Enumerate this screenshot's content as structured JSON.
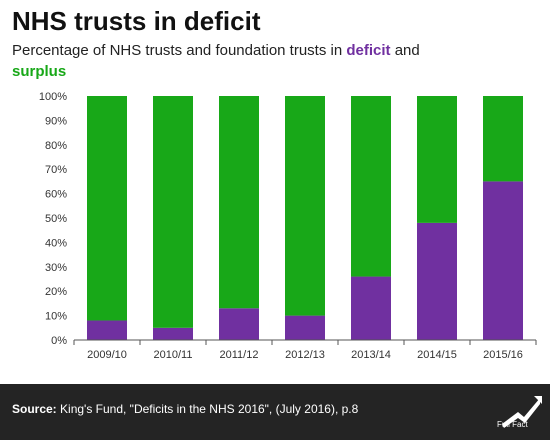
{
  "header": {
    "title": "NHS trusts in deficit",
    "subtitle_prefix": "Percentage of NHS trusts and foundation trusts in ",
    "subtitle_deficit": "deficit",
    "subtitle_and": " and",
    "subtitle_surplus": "surplus"
  },
  "colors": {
    "deficit": "#7030a0",
    "surplus": "#18a818"
  },
  "chart_data": {
    "type": "bar",
    "stacked": true,
    "categories": [
      "2009/10",
      "2010/11",
      "2011/12",
      "2012/13",
      "2013/14",
      "2014/15",
      "2015/16"
    ],
    "series": [
      {
        "name": "deficit",
        "values": [
          8,
          5,
          13,
          10,
          26,
          48,
          65
        ]
      },
      {
        "name": "surplus",
        "values": [
          92,
          95,
          87,
          90,
          74,
          52,
          35
        ]
      }
    ],
    "ylim": [
      0,
      100
    ],
    "yticks": [
      "0%",
      "10%",
      "20%",
      "30%",
      "40%",
      "50%",
      "60%",
      "70%",
      "80%",
      "90%",
      "100%"
    ],
    "grid": false
  },
  "footer": {
    "source_label": "Source:",
    "source_text": " King's Fund, \"Deficits in the NHS 2016\", (July 2016), p.8",
    "logo_text": "Full Fact"
  }
}
